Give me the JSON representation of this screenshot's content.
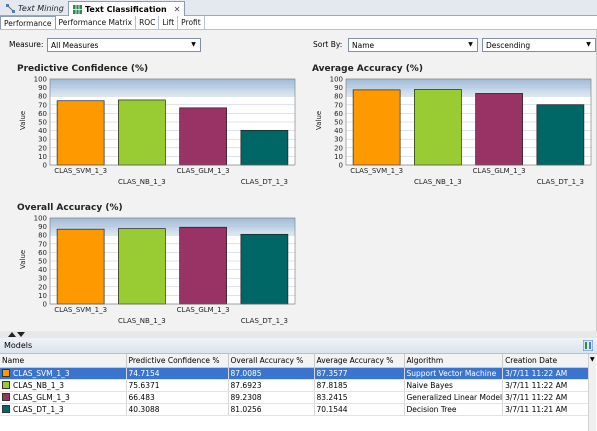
{
  "editor_tabs": [
    {
      "label": "Text Mining",
      "active": false
    },
    {
      "label": "Text Classification",
      "active": true
    }
  ],
  "sub_tabs": [
    "Performance",
    "Performance Matrix",
    "ROC",
    "Lift",
    "Profit"
  ],
  "controls": {
    "measure_label": "Measure:",
    "measure_value": "All Measures",
    "sort_label": "Sort By:",
    "sort_value": "Name",
    "order_value": "Descending"
  },
  "colors": {
    "svm": "#ff9900",
    "nb": "#99cc33",
    "glm": "#993366",
    "dt": "#006666",
    "plot_band_top": "#9fbbd8",
    "plot_band_bottom": "#dde8f3"
  },
  "chart_data": [
    {
      "type": "bar",
      "title": "Predictive Confidence (%)",
      "ylabel": "Value",
      "categories": [
        "CLAS_SVM_1_3",
        "CLAS_NB_1_3",
        "CLAS_GLM_1_3",
        "CLAS_DT_1_3"
      ],
      "values": [
        74.7154,
        75.6371,
        66.483,
        40.3088
      ],
      "ylim": [
        0,
        100
      ],
      "yticks": [
        0,
        10,
        20,
        30,
        40,
        50,
        60,
        70,
        80,
        90,
        100
      ]
    },
    {
      "type": "bar",
      "title": "Average Accuracy (%)",
      "ylabel": "Value",
      "categories": [
        "CLAS_SVM_1_3",
        "CLAS_NB_1_3",
        "CLAS_GLM_1_3",
        "CLAS_DT_1_3"
      ],
      "values": [
        87.3577,
        87.8185,
        83.2415,
        70.1544
      ],
      "ylim": [
        0,
        100
      ],
      "yticks": [
        0,
        10,
        20,
        30,
        40,
        50,
        60,
        70,
        80,
        90,
        100
      ]
    },
    {
      "type": "bar",
      "title": "Overall Accuracy (%)",
      "ylabel": "Value",
      "categories": [
        "CLAS_SVM_1_3",
        "CLAS_NB_1_3",
        "CLAS_GLM_1_3",
        "CLAS_DT_1_3"
      ],
      "values": [
        87.0085,
        87.6923,
        89.2308,
        81.0256
      ],
      "ylim": [
        0,
        100
      ],
      "yticks": [
        0,
        10,
        20,
        30,
        40,
        50,
        60,
        70,
        80,
        90,
        100
      ]
    }
  ],
  "models": {
    "title": "Models",
    "columns": [
      "Name",
      "Predictive Confidence %",
      "Overall Accuracy %",
      "Average Accuracy %",
      "Algorithm",
      "Creation Date"
    ],
    "rows": [
      {
        "name": "CLAS_SVM_1_3",
        "pc": "74.7154",
        "oa": "87.0085",
        "aa": "87.3577",
        "algorithm": "Support Vector Machine",
        "date": "3/7/11 11:22 AM",
        "color": "#ff9900",
        "selected": true
      },
      {
        "name": "CLAS_NB_1_3",
        "pc": "75.6371",
        "oa": "87.6923",
        "aa": "87.8185",
        "algorithm": "Naive Bayes",
        "date": "3/7/11 11:22 AM",
        "color": "#99cc33",
        "selected": false
      },
      {
        "name": "CLAS_GLM_1_3",
        "pc": "66.483",
        "oa": "89.2308",
        "aa": "83.2415",
        "algorithm": "Generalized Linear Model",
        "date": "3/7/11 11:22 AM",
        "color": "#993366",
        "selected": false
      },
      {
        "name": "CLAS_DT_1_3",
        "pc": "40.3088",
        "oa": "81.0256",
        "aa": "70.1544",
        "algorithm": "Decision Tree",
        "date": "3/7/11 11:21 AM",
        "color": "#006666",
        "selected": false
      }
    ]
  }
}
